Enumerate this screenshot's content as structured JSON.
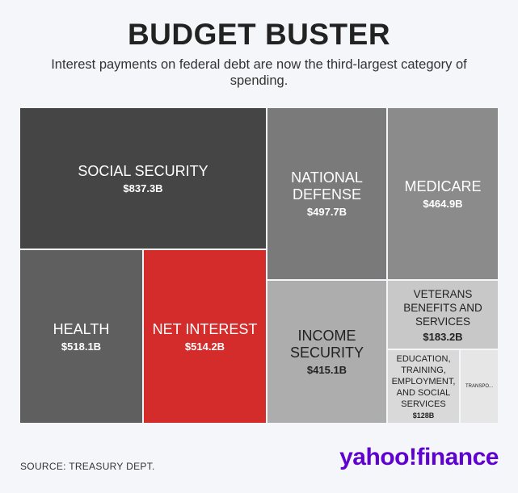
{
  "header": {
    "title": "BUDGET BUSTER",
    "subtitle": "Interest payments on federal debt are now the third-largest category of spending."
  },
  "footer": {
    "source": "SOURCE: TREASURY DEPT.",
    "logo_text": "yahoo!finance",
    "logo_color": "#5f01d1"
  },
  "chart_data": {
    "type": "treemap",
    "title": "BUDGET BUSTER",
    "subtitle": "Interest payments on federal debt are now the third-largest category of spending.",
    "unit": "billions USD",
    "items": [
      {
        "name": "SOCIAL SECURITY",
        "label": "$837.3B",
        "value": 837.3,
        "color": "#454545"
      },
      {
        "name": "HEALTH",
        "label": "$518.1B",
        "value": 518.1,
        "color": "#5f5f5f"
      },
      {
        "name": "NET INTEREST",
        "label": "$514.2B",
        "value": 514.2,
        "color": "#d42b2b"
      },
      {
        "name": "NATIONAL DEFENSE",
        "label": "$497.7B",
        "value": 497.7,
        "color": "#7a7a7a"
      },
      {
        "name": "MEDICARE",
        "label": "$464.9B",
        "value": 464.9,
        "color": "#8b8b8b"
      },
      {
        "name": "INCOME SECURITY",
        "label": "$415.1B",
        "value": 415.1,
        "color": "#adadad"
      },
      {
        "name": "VETERANS BENEFITS AND SERVICES",
        "label": "$183.2B",
        "value": 183.2,
        "color": "#c8c8c8"
      },
      {
        "name": "EDUCATION, TRAINING, EMPLOYMENT, AND SOCIAL SERVICES",
        "label": "$128B",
        "value": 128,
        "color": "#d9d9d9"
      },
      {
        "name": "TRANSPO...",
        "label": "",
        "value": null,
        "color": "#e6e6e6"
      }
    ]
  }
}
